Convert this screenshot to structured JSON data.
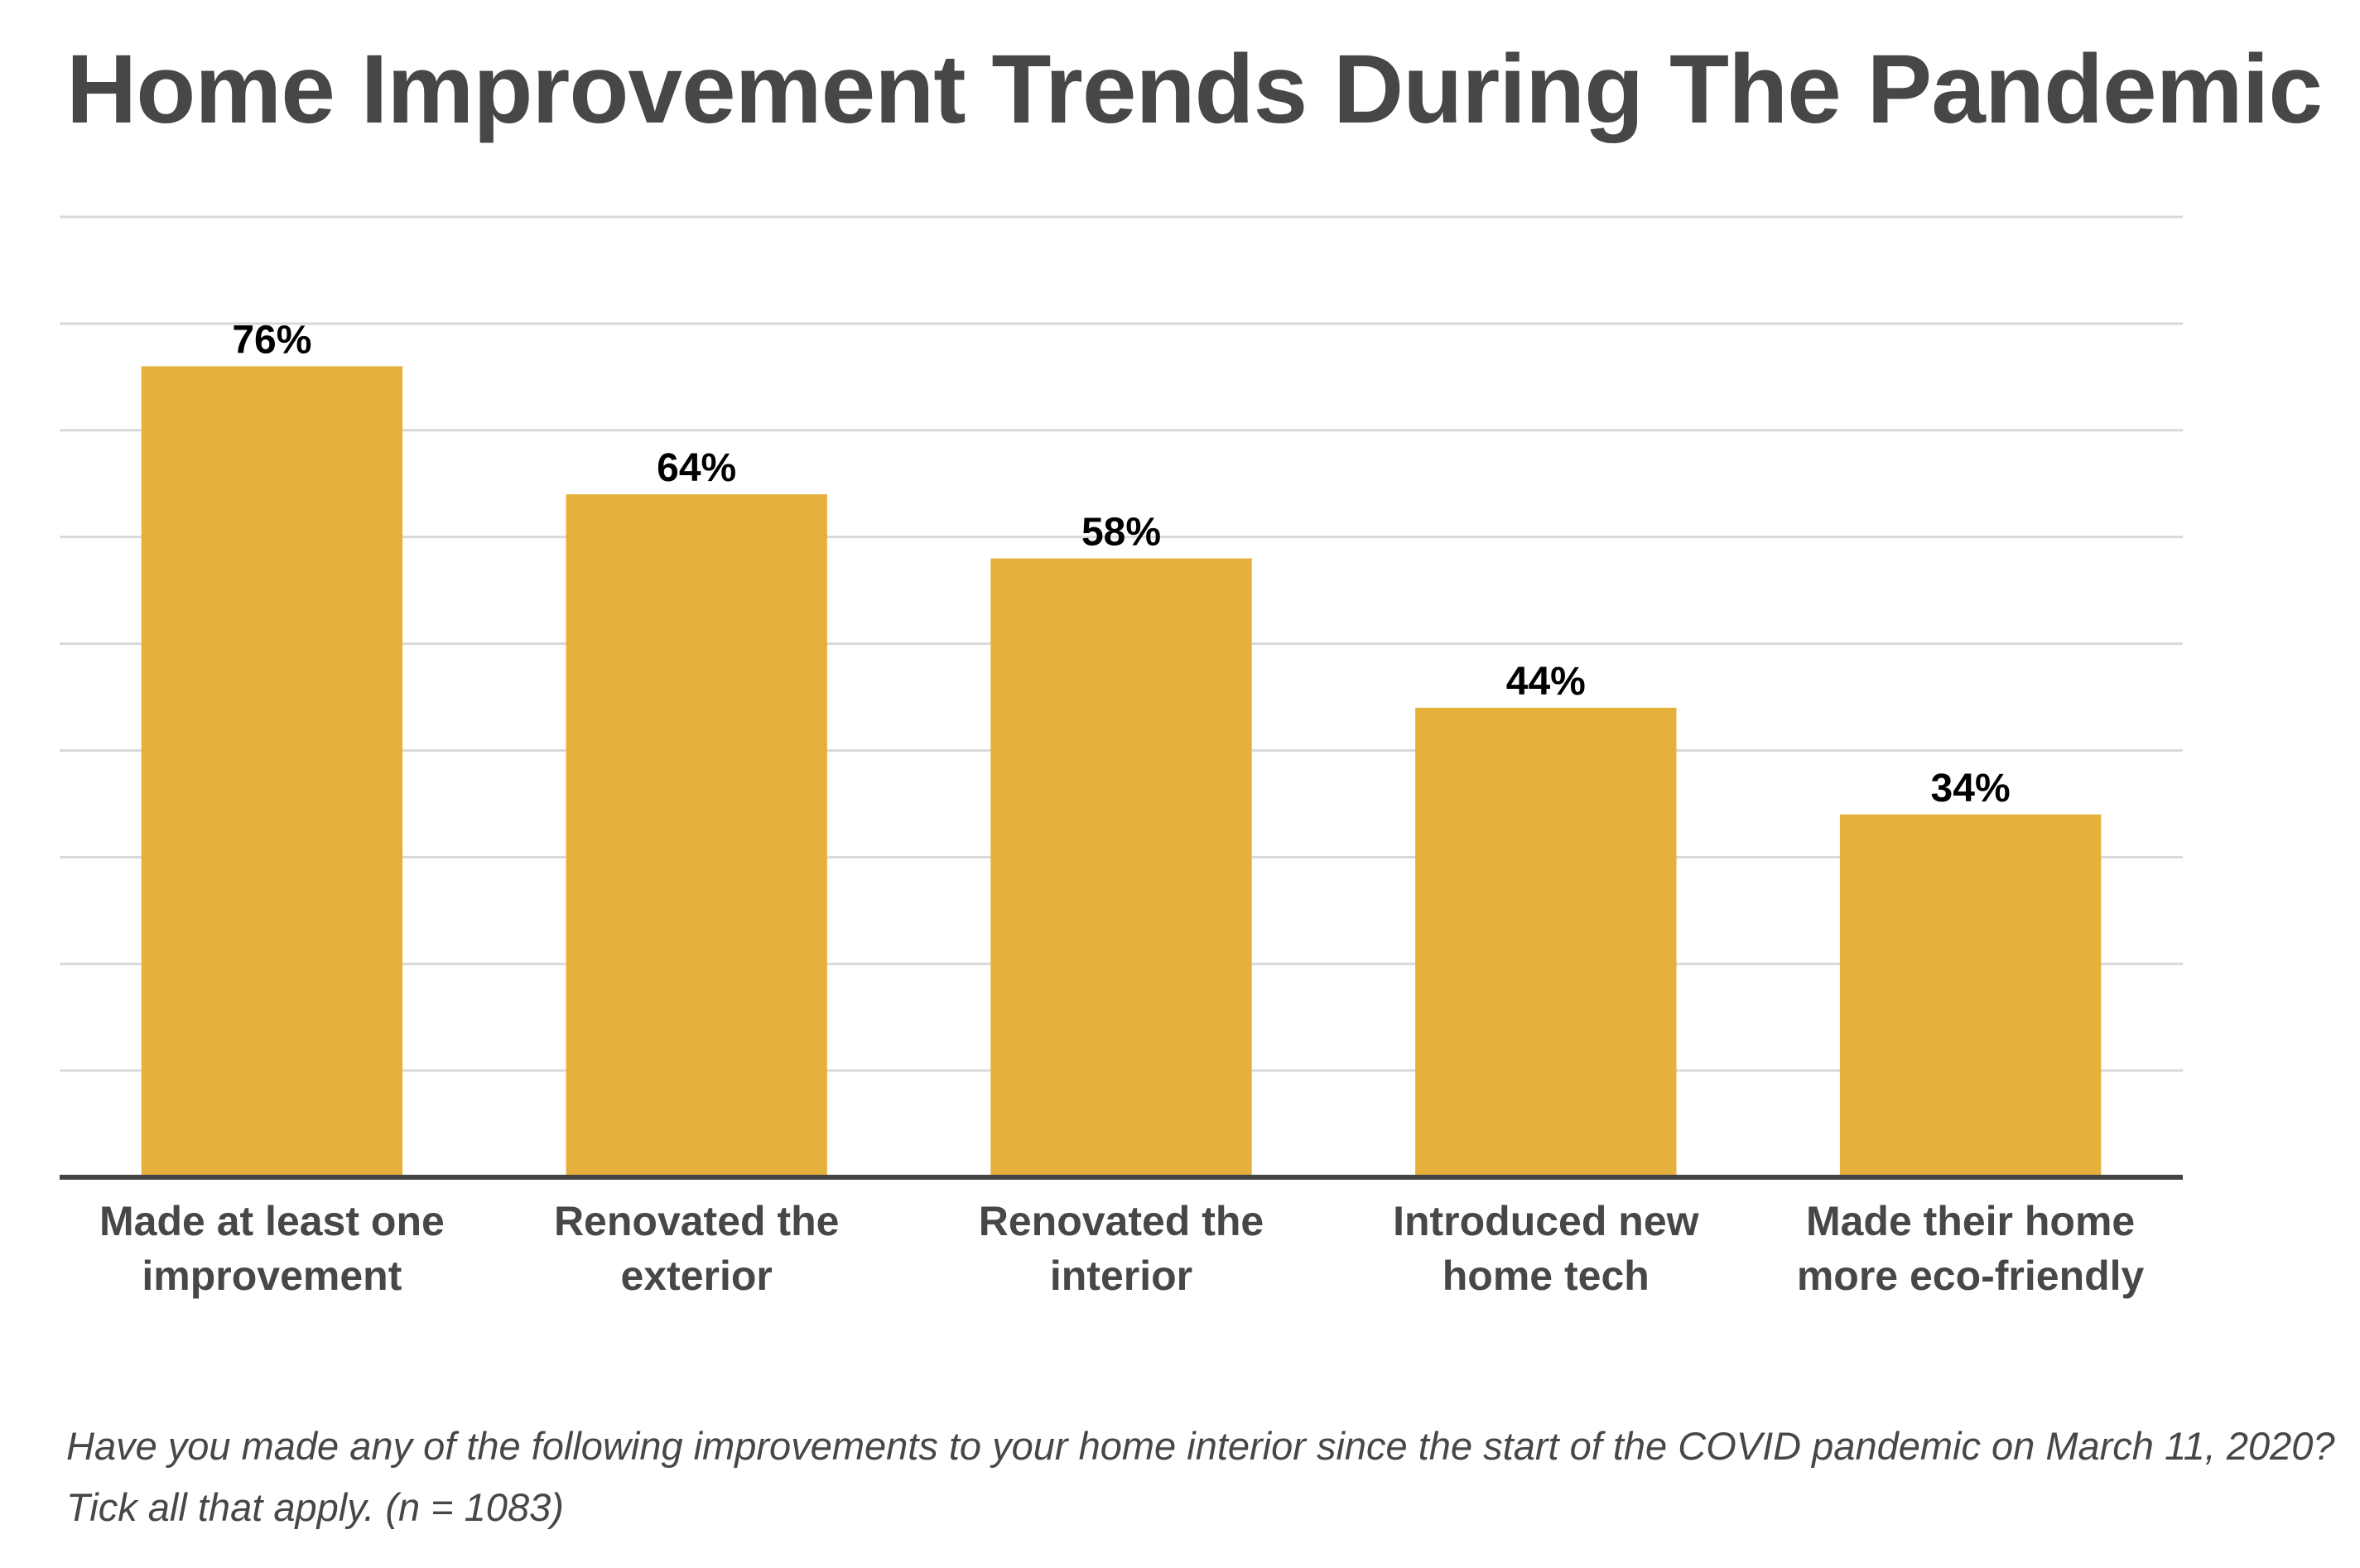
{
  "chart_data": {
    "type": "bar",
    "title": "Home Improvement Trends During The Pandemic",
    "categories": [
      [
        "Made at least one",
        "improvement"
      ],
      [
        "Renovated the",
        "exterior"
      ],
      [
        "Renovated the",
        "interior"
      ],
      [
        "Introduced new",
        "home tech"
      ],
      [
        "Made their home",
        "more eco-friendly"
      ]
    ],
    "values": [
      76,
      64,
      58,
      44,
      34
    ],
    "data_labels": [
      "76%",
      "64%",
      "58%",
      "44%",
      "34%"
    ],
    "ylim": [
      0,
      90
    ],
    "ytick_step": 10,
    "grid": true,
    "show_y_tick_labels": false,
    "legend": "none",
    "xlabel": "",
    "ylabel": "",
    "bar_color": "#E6B03D",
    "grid_color": "#D9D9D9",
    "baseline_color": "#444444",
    "label_color": "#000000",
    "category_color": "#474747"
  },
  "caption": " Have you made any of the following improvements to your home interior since the start of the COVID pandemic on March 11, 2020? Tick all that apply. (n = 1083)"
}
